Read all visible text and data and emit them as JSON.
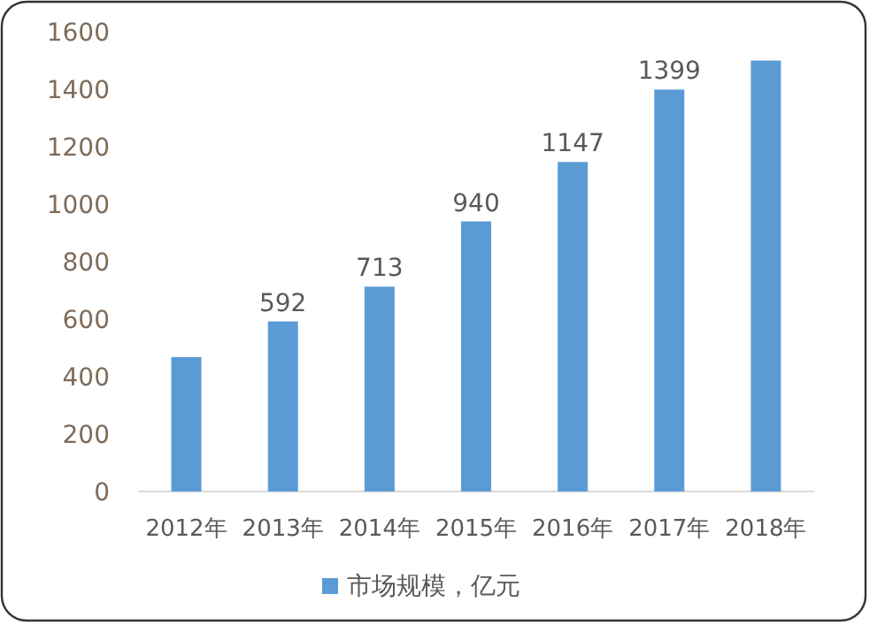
{
  "chart_data": {
    "type": "bar",
    "categories": [
      "2012年",
      "2013年",
      "2014年",
      "2015年",
      "2016年",
      "2017年",
      "2018年"
    ],
    "series": [
      {
        "name": "市场规模，亿元",
        "color": "#5b9bd5",
        "values": [
          468,
          592,
          713,
          940,
          1147,
          1399,
          1500
        ],
        "value_labels": [
          null,
          "592",
          "713",
          "940",
          "1147",
          "1399",
          null
        ]
      }
    ],
    "ylim": [
      0,
      1600
    ],
    "yticks": [
      0,
      200,
      400,
      600,
      800,
      1000,
      1200,
      1400,
      1600
    ],
    "grid": false,
    "legend": "bottom"
  }
}
